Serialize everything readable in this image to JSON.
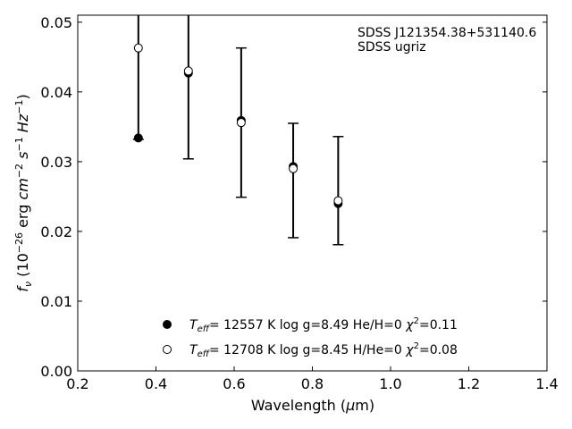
{
  "chart_data": {
    "type": "scatter",
    "xlabel": "Wavelength (μm)",
    "ylabel": "f_ν (10^-26 erg cm^-2 s^-1 Hz^-1)",
    "xlim": [
      0.2,
      1.4
    ],
    "ylim": [
      0.0,
      0.051
    ],
    "x_ticks": [
      "0.2",
      "0.4",
      "0.6",
      "0.8",
      "1.0",
      "1.2",
      "1.4"
    ],
    "y_ticks": [
      "0.00",
      "0.01",
      "0.02",
      "0.03",
      "0.04",
      "0.05"
    ],
    "annotations": [
      "SDSS J121354.38+531140.6",
      "SDSS ugriz"
    ],
    "grid": false,
    "legend_position": "bottom-center",
    "observed": {
      "x": [
        0.355,
        0.483,
        0.618,
        0.751,
        0.866
      ],
      "y": [
        0.0335,
        0.043,
        0.0358,
        0.0292,
        0.0242
      ],
      "yerr_low": [
        0.0332,
        0.0304,
        0.0249,
        0.0191,
        0.0181
      ],
      "yerr_high": [
        0.051,
        0.051,
        0.0463,
        0.0355,
        0.0336
      ]
    },
    "series": [
      {
        "label": "T_eff= 12557 K  log g=8.49  He/H=0  χ²=0.11",
        "marker": "filled-circle",
        "x": [
          0.355,
          0.483,
          0.618,
          0.751,
          0.866
        ],
        "y": [
          0.0334,
          0.0427,
          0.0359,
          0.0293,
          0.024
        ]
      },
      {
        "label": "T_eff= 12708 K  log g=8.45  H/He=0  χ²=0.08",
        "marker": "open-circle",
        "x": [
          0.355,
          0.483,
          0.618,
          0.751,
          0.866
        ],
        "y": [
          0.0463,
          0.043,
          0.0356,
          0.029,
          0.0244
        ]
      }
    ],
    "legend_entries": [
      {
        "teff": "12557",
        "logg": "8.49",
        "comp": "He/H=0",
        "chi": "0.11"
      },
      {
        "teff": "12708",
        "logg": "8.45",
        "comp": "H/He=0",
        "chi": "0.08"
      }
    ],
    "colors": {
      "marker": "#000000",
      "axis": "#000000",
      "background": "#ffffff"
    }
  }
}
